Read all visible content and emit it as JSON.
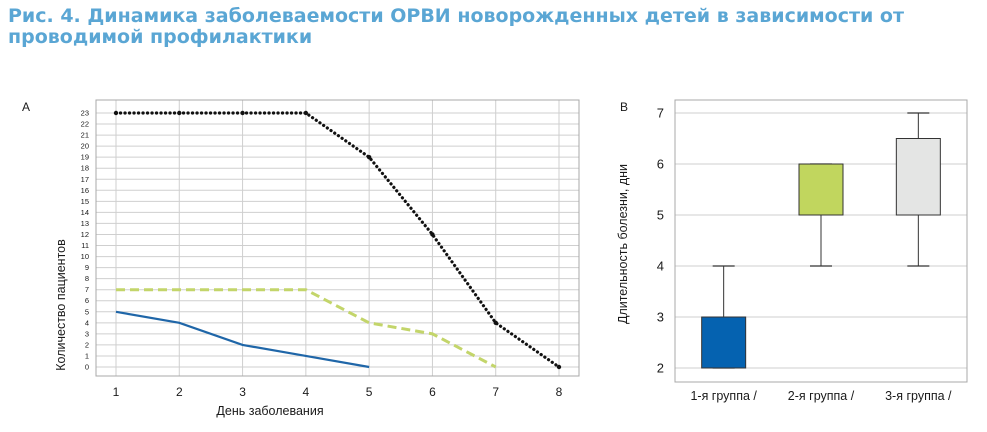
{
  "figure": {
    "title": "Рис. 4. Динамика заболеваемости ОРВИ новорожденных детей в зависимости от проводимой профилактики"
  },
  "chart_data": [
    {
      "type": "line",
      "panel_label": "A",
      "xlabel": "День заболевания",
      "ylabel": "Количество пациентов",
      "x_ticks": [
        1,
        2,
        3,
        4,
        5,
        6,
        7,
        8
      ],
      "y_ticks": [
        0,
        1,
        2,
        3,
        4,
        5,
        6,
        7,
        8,
        9,
        10,
        11,
        12,
        13,
        14,
        15,
        16,
        17,
        18,
        19,
        20,
        21,
        22,
        23
      ],
      "xlim": [
        1,
        8
      ],
      "ylim": [
        0,
        23
      ],
      "grid": true,
      "legend": "none",
      "series": [
        {
          "color": "#1f66a8",
          "style": "solid",
          "x": [
            1,
            2,
            3,
            4,
            5
          ],
          "y": [
            5,
            4,
            2,
            1,
            0
          ]
        },
        {
          "color": "#c3d56a",
          "style": "dashed",
          "x": [
            1,
            2,
            3,
            4,
            5,
            6,
            7
          ],
          "y": [
            7,
            7,
            7,
            7,
            4,
            3,
            0
          ]
        },
        {
          "color": "#111111",
          "style": "dotted",
          "x": [
            1,
            2,
            3,
            4,
            5,
            6,
            7,
            8
          ],
          "y": [
            23,
            23,
            23,
            23,
            19,
            12,
            4,
            0
          ]
        }
      ]
    },
    {
      "type": "box",
      "panel_label": "B",
      "ylabel": "Длительность болезни, дни",
      "categories": [
        "1-я группа /",
        "2-я группа /",
        "3-я группа /"
      ],
      "y_ticks": [
        2,
        3,
        4,
        5,
        6,
        7
      ],
      "ylim": [
        2,
        7
      ],
      "grid": true,
      "boxes": [
        {
          "min": 2,
          "q1": 2,
          "q3": 3,
          "max": 4,
          "color": "#0562b0"
        },
        {
          "min": 4,
          "q1": 5,
          "q3": 6,
          "max": 6,
          "color": "#c1d65e"
        },
        {
          "min": 4,
          "q1": 5,
          "q3": 6.5,
          "max": 7,
          "color": "#e4e5e4"
        }
      ]
    }
  ]
}
